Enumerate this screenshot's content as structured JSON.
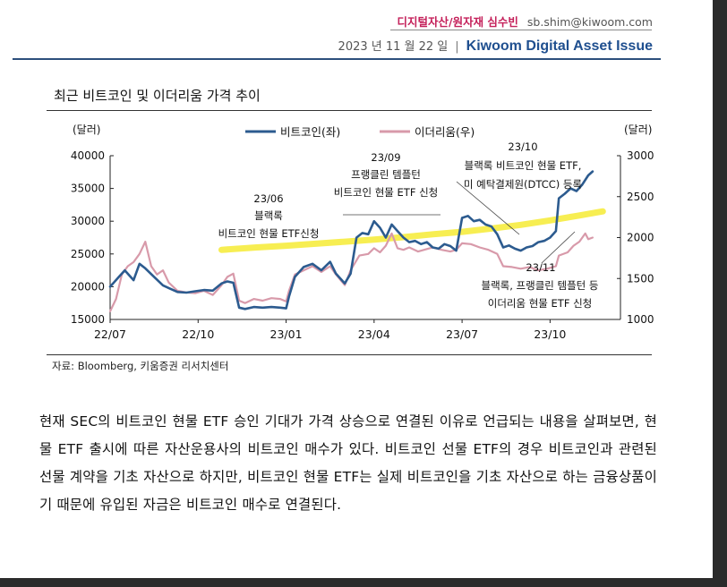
{
  "header": {
    "author": "디지털자산/원자재 심수빈",
    "email": "sb.shim@kiwoom.com",
    "date": "2023 년 11 월 22 일",
    "separator": "|",
    "brand": "Kiwoom Digital Asset Issue"
  },
  "figure": {
    "title": "최근 비트코인 및 이더리움 가격 추이",
    "source": "자료: Bloomberg, 키움증권 리서치센터"
  },
  "chart_data": {
    "type": "line",
    "y_left_label": "(달러)",
    "y_right_label": "(달러)",
    "y_left_range": [
      15000,
      40000
    ],
    "y_right_range": [
      1000,
      3000
    ],
    "y_left_ticks": [
      "15000",
      "20000",
      "25000",
      "30000",
      "35000",
      "40000"
    ],
    "y_right_ticks": [
      "1000",
      "1500",
      "2000",
      "2500",
      "3000"
    ],
    "x_ticks": [
      "22/07",
      "22/10",
      "23/01",
      "23/04",
      "23/07",
      "23/10"
    ],
    "x_tick_positions": [
      0,
      3,
      6,
      9,
      12,
      15
    ],
    "x_range": [
      0,
      17.4
    ],
    "legend": [
      {
        "name": "비트코인(좌)",
        "color": "#2c5b8f"
      },
      {
        "name": "이더리움(우)",
        "color": "#d89aaa"
      }
    ],
    "series": [
      {
        "name": "비트코인(좌)",
        "axis": "left",
        "color": "#2c5b8f",
        "points": [
          [
            0,
            20000
          ],
          [
            0.3,
            21500
          ],
          [
            0.5,
            22500
          ],
          [
            0.8,
            21000
          ],
          [
            1.0,
            23500
          ],
          [
            1.2,
            22800
          ],
          [
            1.5,
            21500
          ],
          [
            1.8,
            20200
          ],
          [
            2.0,
            19800
          ],
          [
            2.3,
            19200
          ],
          [
            2.6,
            19100
          ],
          [
            2.9,
            19300
          ],
          [
            3.2,
            19500
          ],
          [
            3.5,
            19400
          ],
          [
            3.8,
            20500
          ],
          [
            4.0,
            20800
          ],
          [
            4.2,
            20600
          ],
          [
            4.4,
            16800
          ],
          [
            4.6,
            16600
          ],
          [
            4.9,
            16900
          ],
          [
            5.2,
            16800
          ],
          [
            5.5,
            16900
          ],
          [
            5.8,
            16800
          ],
          [
            6.0,
            16700
          ],
          [
            6.1,
            18500
          ],
          [
            6.3,
            21500
          ],
          [
            6.6,
            23000
          ],
          [
            6.9,
            23500
          ],
          [
            7.2,
            22500
          ],
          [
            7.5,
            23800
          ],
          [
            7.7,
            22000
          ],
          [
            8.0,
            20500
          ],
          [
            8.2,
            22000
          ],
          [
            8.4,
            27500
          ],
          [
            8.6,
            28200
          ],
          [
            8.8,
            28000
          ],
          [
            9.0,
            30000
          ],
          [
            9.2,
            29000
          ],
          [
            9.4,
            27500
          ],
          [
            9.6,
            29500
          ],
          [
            9.8,
            28500
          ],
          [
            10.0,
            27500
          ],
          [
            10.2,
            26800
          ],
          [
            10.4,
            27000
          ],
          [
            10.6,
            26500
          ],
          [
            10.8,
            26800
          ],
          [
            11.0,
            26000
          ],
          [
            11.2,
            25800
          ],
          [
            11.4,
            26500
          ],
          [
            11.6,
            26200
          ],
          [
            11.8,
            25500
          ],
          [
            12.0,
            30500
          ],
          [
            12.2,
            30800
          ],
          [
            12.4,
            30000
          ],
          [
            12.6,
            30200
          ],
          [
            12.8,
            29500
          ],
          [
            13.0,
            29200
          ],
          [
            13.2,
            28000
          ],
          [
            13.4,
            26000
          ],
          [
            13.6,
            26300
          ],
          [
            13.8,
            25800
          ],
          [
            14.0,
            25500
          ],
          [
            14.2,
            26000
          ],
          [
            14.4,
            26200
          ],
          [
            14.6,
            26800
          ],
          [
            14.8,
            27000
          ],
          [
            15.0,
            27500
          ],
          [
            15.2,
            28500
          ],
          [
            15.3,
            33500
          ],
          [
            15.5,
            34200
          ],
          [
            15.7,
            35000
          ],
          [
            15.9,
            34600
          ],
          [
            16.1,
            35600
          ],
          [
            16.3,
            37000
          ],
          [
            16.45,
            37600
          ]
        ]
      },
      {
        "name": "이더리움(우)",
        "axis": "right",
        "color": "#d89aaa",
        "points": [
          [
            0,
            1100
          ],
          [
            0.2,
            1250
          ],
          [
            0.4,
            1550
          ],
          [
            0.6,
            1650
          ],
          [
            0.8,
            1700
          ],
          [
            1.0,
            1800
          ],
          [
            1.2,
            1950
          ],
          [
            1.4,
            1650
          ],
          [
            1.6,
            1550
          ],
          [
            1.8,
            1600
          ],
          [
            2.0,
            1450
          ],
          [
            2.3,
            1350
          ],
          [
            2.6,
            1330
          ],
          [
            2.9,
            1320
          ],
          [
            3.2,
            1350
          ],
          [
            3.5,
            1300
          ],
          [
            3.8,
            1420
          ],
          [
            4.0,
            1520
          ],
          [
            4.2,
            1560
          ],
          [
            4.4,
            1230
          ],
          [
            4.6,
            1200
          ],
          [
            4.9,
            1250
          ],
          [
            5.2,
            1230
          ],
          [
            5.5,
            1260
          ],
          [
            5.8,
            1250
          ],
          [
            6.0,
            1220
          ],
          [
            6.1,
            1350
          ],
          [
            6.3,
            1550
          ],
          [
            6.6,
            1600
          ],
          [
            6.9,
            1650
          ],
          [
            7.2,
            1580
          ],
          [
            7.5,
            1650
          ],
          [
            7.7,
            1550
          ],
          [
            8.0,
            1420
          ],
          [
            8.2,
            1600
          ],
          [
            8.5,
            1780
          ],
          [
            8.8,
            1800
          ],
          [
            9.0,
            1870
          ],
          [
            9.2,
            1820
          ],
          [
            9.4,
            1900
          ],
          [
            9.6,
            2050
          ],
          [
            9.8,
            1870
          ],
          [
            10.0,
            1850
          ],
          [
            10.2,
            1880
          ],
          [
            10.5,
            1830
          ],
          [
            10.8,
            1860
          ],
          [
            11.0,
            1880
          ],
          [
            11.3,
            1850
          ],
          [
            11.6,
            1830
          ],
          [
            11.8,
            1850
          ],
          [
            12.0,
            1930
          ],
          [
            12.3,
            1920
          ],
          [
            12.6,
            1880
          ],
          [
            12.9,
            1850
          ],
          [
            13.2,
            1800
          ],
          [
            13.4,
            1650
          ],
          [
            13.7,
            1640
          ],
          [
            14.0,
            1620
          ],
          [
            14.3,
            1640
          ],
          [
            14.6,
            1600
          ],
          [
            14.9,
            1620
          ],
          [
            15.2,
            1650
          ],
          [
            15.3,
            1780
          ],
          [
            15.6,
            1820
          ],
          [
            15.8,
            1900
          ],
          [
            16.0,
            1950
          ],
          [
            16.2,
            2050
          ],
          [
            16.3,
            1980
          ],
          [
            16.45,
            2000
          ]
        ]
      },
      {
        "name": "",
        "axis": "right",
        "color": "#f7ee52",
        "points": [
          [
            3.8,
            1850
          ],
          [
            5.0,
            1880
          ],
          [
            6.0,
            1900
          ],
          [
            7.0,
            1925
          ],
          [
            8.0,
            1950
          ],
          [
            9.0,
            1975
          ],
          [
            10.0,
            2005
          ],
          [
            11.0,
            2040
          ],
          [
            12.0,
            2070
          ],
          [
            13.0,
            2110
          ],
          [
            14.0,
            2155
          ],
          [
            15.0,
            2210
          ],
          [
            16.0,
            2270
          ],
          [
            16.8,
            2320
          ]
        ]
      }
    ],
    "annotations": [
      {
        "lines": [
          "23/06",
          "블랙록",
          "비트코인 현물 ETF신청"
        ]
      },
      {
        "lines": [
          "23/09",
          "프랭클린 템플턴",
          "비트코인 현물 ETF 신청"
        ]
      },
      {
        "lines": [
          "23/10",
          "블랙록 비트코인 현물 ETF,",
          "미 예탁결제원(DTCC) 등록"
        ]
      },
      {
        "lines": [
          "23/11",
          "블랙록, 프랭클린 템플턴 등",
          "이더리움 현물 ETF 신청"
        ]
      }
    ]
  },
  "body": {
    "paragraph": "현재 SEC의 비트코인 현물 ETF 승인 기대가 가격 상승으로 연결된 이유로 언급되는 내용을 살펴보면, 현물 ETF 출시에 따른 자산운용사의 비트코인 매수가 있다. 비트코인 선물 ETF의 경우 비트코인과 관련된 선물 계약을 기초 자산으로 하지만, 비트코인 현물 ETF는 실제 비트코인을 기초 자산으로 하는 금융상품이기 때문에 유입된 자금은 비트코인 매수로 연결된다."
  }
}
